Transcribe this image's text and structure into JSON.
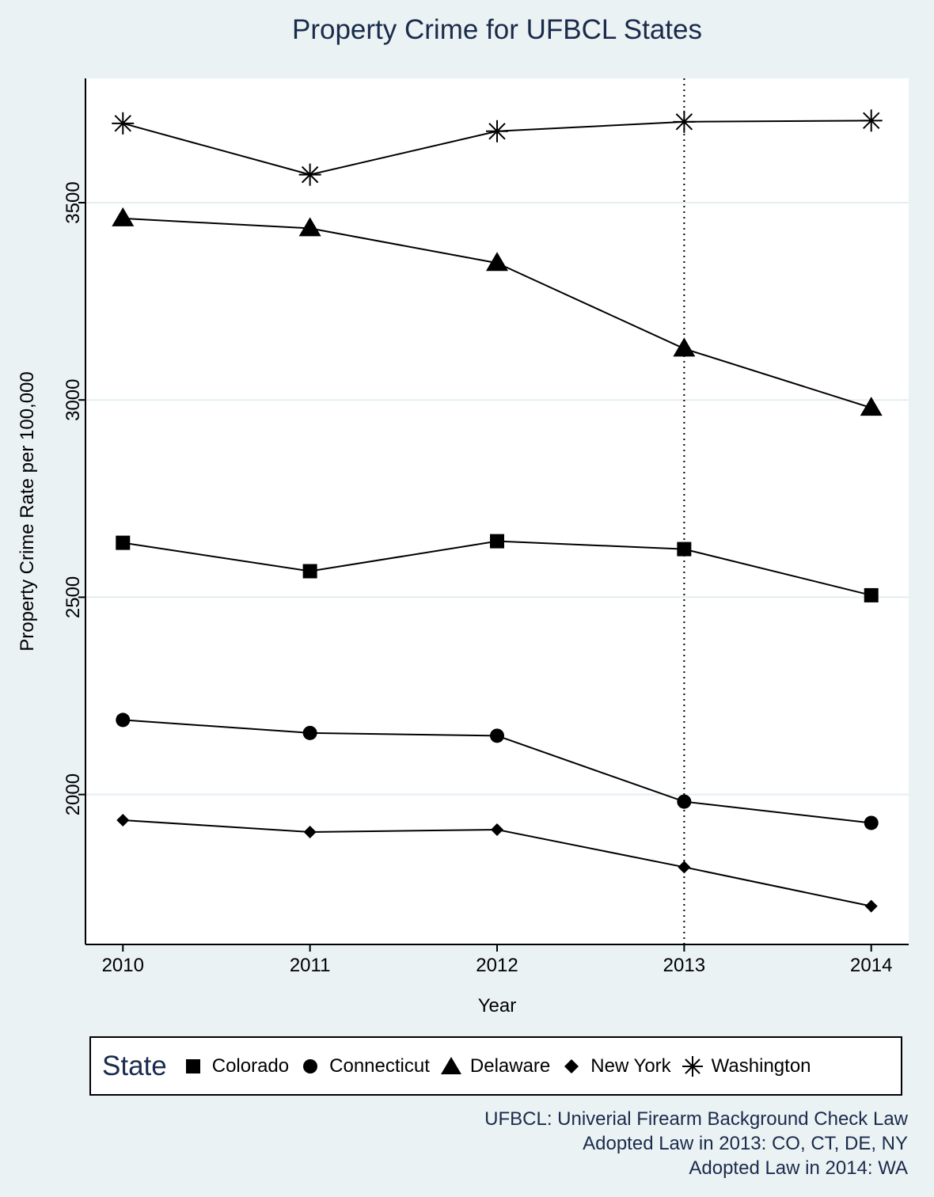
{
  "chart_data": {
    "type": "line",
    "title": "Property Crime for UFBCL States",
    "xlabel": "Year",
    "ylabel": "Property Crime Rate per 100,000",
    "x": [
      2010,
      2011,
      2012,
      2013,
      2014
    ],
    "xlim": [
      2009.8,
      2014.2
    ],
    "ylim": [
      1620,
      3815
    ],
    "yticks": [
      2000,
      2500,
      3000,
      3500
    ],
    "grid": "horizontal",
    "reference_line": {
      "x": 2013,
      "style": "dotted"
    },
    "series": [
      {
        "name": "Colorado",
        "marker": "square",
        "values": [
          2638,
          2566,
          2642,
          2622,
          2505
        ]
      },
      {
        "name": "Connecticut",
        "marker": "circle",
        "values": [
          2189,
          2156,
          2149,
          1982,
          1928
        ]
      },
      {
        "name": "Delaware",
        "marker": "triangle",
        "values": [
          3460,
          3435,
          3347,
          3130,
          2980
        ]
      },
      {
        "name": "New York",
        "marker": "diamond",
        "values": [
          1935,
          1905,
          1911,
          1816,
          1717
        ]
      },
      {
        "name": "Washington",
        "marker": "asterisk",
        "values": [
          3701,
          3571,
          3681,
          3705,
          3708
        ]
      }
    ],
    "legend": {
      "title": "State",
      "position": "bottom"
    },
    "notes": [
      "UFBCL: Univerial Firearm Background Check Law",
      "Adopted Law in 2013: CO, CT, DE, NY",
      "Adopted Law in 2014: WA"
    ]
  }
}
